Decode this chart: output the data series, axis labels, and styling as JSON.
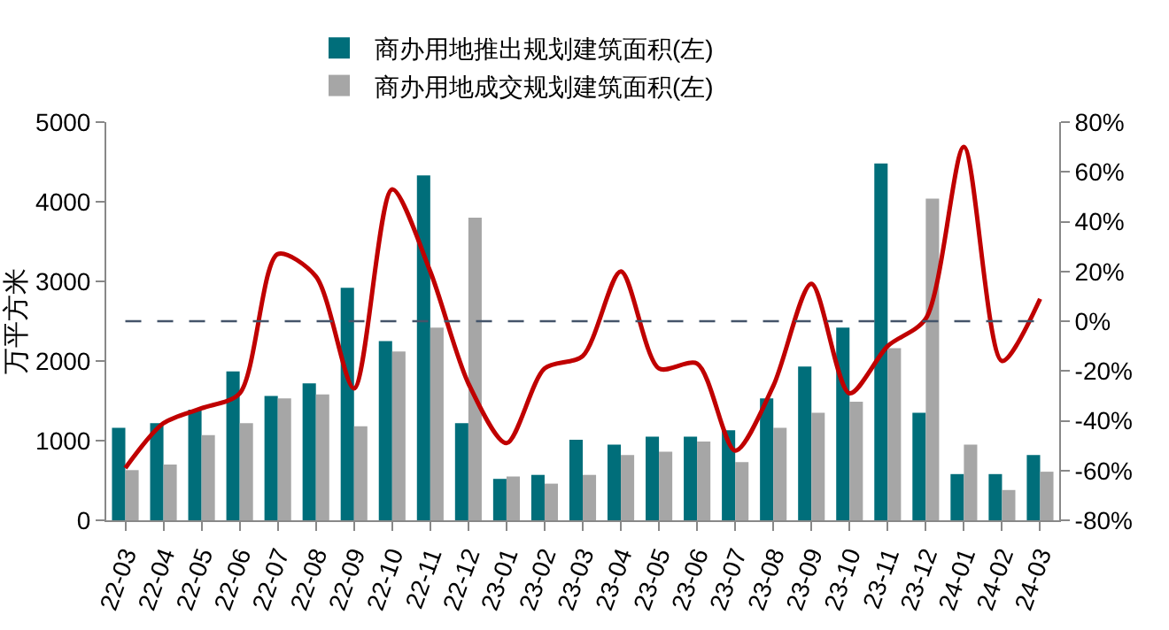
{
  "chart_data": {
    "type": "bar",
    "ylabel": "万平方米",
    "categories": [
      "22-03",
      "22-04",
      "22-05",
      "22-06",
      "22-07",
      "22-08",
      "22-09",
      "22-10",
      "22-11",
      "22-12",
      "23-01",
      "23-02",
      "23-03",
      "23-04",
      "23-05",
      "23-06",
      "23-07",
      "23-08",
      "23-09",
      "23-10",
      "23-11",
      "23-12",
      "24-01",
      "24-02",
      "24-03"
    ],
    "series": [
      {
        "name": "商办用地推出规划建筑面积(左)",
        "color": "#006e7a",
        "values": [
          1160,
          1220,
          1390,
          1870,
          1560,
          1720,
          2920,
          2250,
          4330,
          1220,
          520,
          570,
          1010,
          950,
          1050,
          1050,
          1130,
          1530,
          1930,
          2420,
          4480,
          1350,
          580,
          580,
          820
        ]
      },
      {
        "name": "商办用地成交规划建筑面积(左)",
        "color": "#a6a6a6",
        "values": [
          630,
          700,
          1070,
          1220,
          1530,
          1580,
          1180,
          2120,
          2420,
          3800,
          550,
          460,
          570,
          820,
          860,
          990,
          730,
          1160,
          1350,
          1490,
          2160,
          4040,
          950,
          380,
          610
        ]
      },
      {
        "type": "line",
        "axis": "y2",
        "color": "#c00000",
        "values": [
          -59,
          -41,
          -35,
          -29,
          27,
          18,
          -27,
          53,
          20,
          -25,
          -49,
          -19,
          -14,
          20,
          -19,
          -17,
          -52,
          -26,
          15,
          -29,
          -10,
          1,
          70,
          -16,
          9
        ]
      }
    ],
    "ylim": [
      0,
      5000
    ],
    "yticks": [
      0,
      1000,
      2000,
      3000,
      4000,
      5000
    ],
    "y2lim": [
      -80,
      80
    ],
    "y2ticks": [
      {
        "value": -80,
        "label": "-80%"
      },
      {
        "value": -60,
        "label": "-60%"
      },
      {
        "value": -40,
        "label": "-40%"
      },
      {
        "value": -20,
        "label": "-20%"
      },
      {
        "value": 0,
        "label": "0%"
      },
      {
        "value": 20,
        "label": "20%"
      },
      {
        "value": 40,
        "label": "40%"
      },
      {
        "value": 60,
        "label": "60%"
      },
      {
        "value": 80,
        "label": "80%"
      }
    ],
    "ref_lines": [
      {
        "axis": "y2",
        "value": 0,
        "color": "#44546a",
        "line_style": "dashed"
      }
    ],
    "grid": false,
    "legend": "top"
  }
}
